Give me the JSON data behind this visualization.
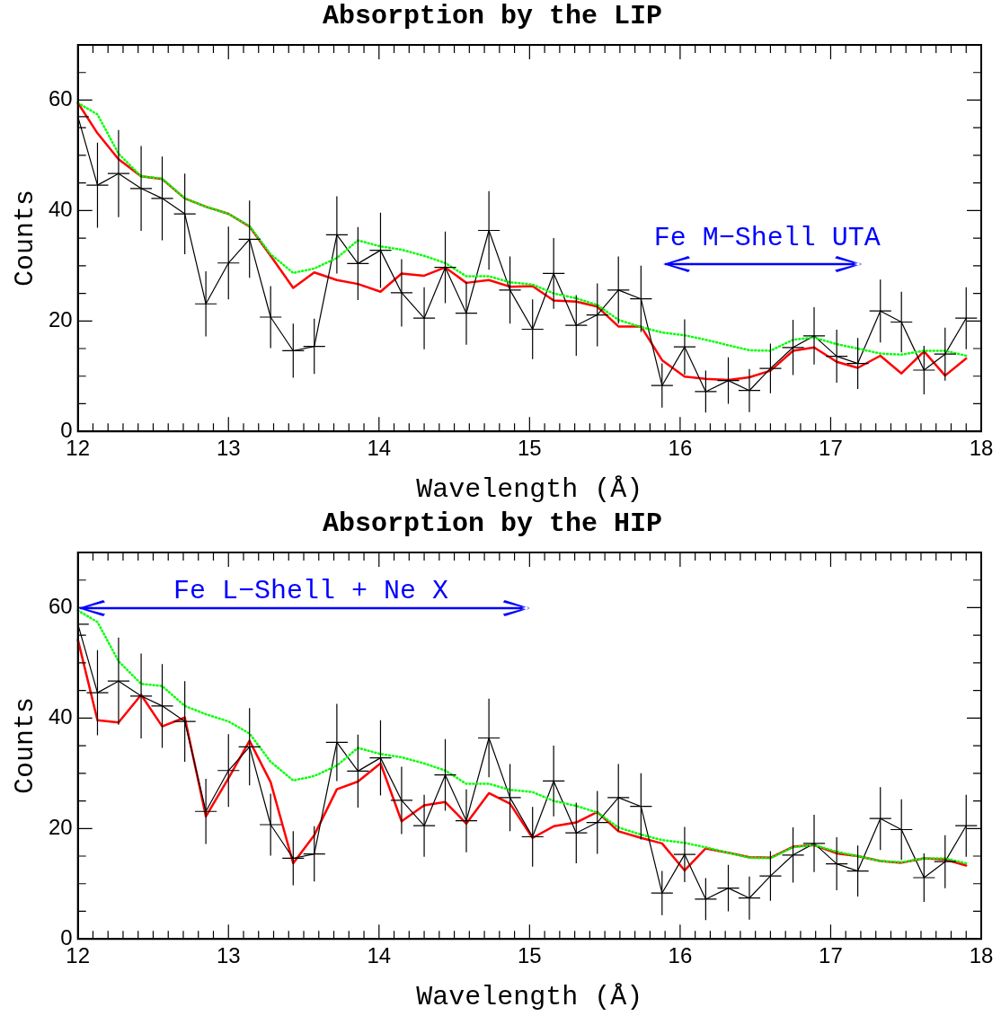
{
  "chart_data": [
    {
      "type": "line",
      "title": "Absorption by the LIP",
      "xlabel": "Wavelength (Å)",
      "ylabel": "Counts",
      "x": [
        12.0,
        12.13,
        12.27,
        12.42,
        12.56,
        12.71,
        12.85,
        13.0,
        13.14,
        13.28,
        13.43,
        13.57,
        13.72,
        13.86,
        14.01,
        14.15,
        14.3,
        14.44,
        14.58,
        14.73,
        14.87,
        15.02,
        15.16,
        15.31,
        15.45,
        15.59,
        15.74,
        15.88,
        16.03,
        16.17,
        16.32,
        16.46,
        16.6,
        16.75,
        16.89,
        17.04,
        17.18,
        17.33,
        17.47,
        17.62,
        17.76,
        17.9
      ],
      "series": [
        {
          "color": "#00ff00",
          "line_style": "dotted",
          "values": [
            59.5,
            57.4,
            50.3,
            46.2,
            45.8,
            42.2,
            40.7,
            39.4,
            37.2,
            32.1,
            28.7,
            29.5,
            31.4,
            34.6,
            33.5,
            32.9,
            31.8,
            30.5,
            28.1,
            28.1,
            27.0,
            26.6,
            25.0,
            24.1,
            22.9,
            20.2,
            18.9,
            17.9,
            17.4,
            16.6,
            15.6,
            14.7,
            14.6,
            16.6,
            17.0,
            15.8,
            15.0,
            14.1,
            13.9,
            14.6,
            14.6,
            13.7
          ]
        },
        {
          "color": "#000000",
          "line_style": "solid",
          "values": [
            57.0,
            44.6,
            46.7,
            44.0,
            42.2,
            39.4,
            23.1,
            30.5,
            34.8,
            20.7,
            14.6,
            15.4,
            35.6,
            30.4,
            32.8,
            25.1,
            20.5,
            29.7,
            21.4,
            36.4,
            25.6,
            18.5,
            28.6,
            19.2,
            21.1,
            25.6,
            24.0,
            8.3,
            15.3,
            7.2,
            9.2,
            7.4,
            11.4,
            15.2,
            17.3,
            13.6,
            12.3,
            21.8,
            19.8,
            11.1,
            14.0,
            20.5
          ],
          "errors": [
            8.6,
            7.7,
            7.9,
            7.7,
            7.6,
            7.3,
            5.9,
            6.6,
            7.0,
            5.6,
            4.9,
            5.0,
            7.0,
            6.6,
            6.8,
            6.1,
            5.6,
            6.5,
            5.7,
            7.1,
            6.1,
            5.4,
            6.4,
            5.5,
            5.7,
            6.1,
            6.0,
            4.0,
            5.0,
            3.8,
            4.2,
            3.9,
            4.5,
            5.0,
            5.2,
            4.8,
            4.6,
            5.7,
            5.5,
            4.4,
            4.8,
            5.6
          ],
          "xerrors": [
            0.072,
            0.072,
            0.072,
            0.072,
            0.072,
            0.072,
            0.072,
            0.072,
            0.072,
            0.072,
            0.072,
            0.072,
            0.072,
            0.072,
            0.072,
            0.072,
            0.072,
            0.072,
            0.072,
            0.072,
            0.072,
            0.072,
            0.072,
            0.072,
            0.072,
            0.072,
            0.072,
            0.072,
            0.072,
            0.072,
            0.072,
            0.072,
            0.072,
            0.072,
            0.072,
            0.072,
            0.072,
            0.072,
            0.072,
            0.072,
            0.072,
            0.072
          ]
        },
        {
          "color": "#ff0000",
          "line_style": "solid",
          "values": [
            59.5,
            54.0,
            49.3,
            46.2,
            45.7,
            42.2,
            40.7,
            39.4,
            37.1,
            31.8,
            26.0,
            28.8,
            27.4,
            26.7,
            25.3,
            28.6,
            28.2,
            29.7,
            26.9,
            27.4,
            26.2,
            26.3,
            23.7,
            23.5,
            22.6,
            19.0,
            19.0,
            12.9,
            9.9,
            9.5,
            9.3,
            9.8,
            11.0,
            14.6,
            15.2,
            12.6,
            11.5,
            13.7,
            10.5,
            14.5,
            10.1,
            13.2
          ]
        }
      ],
      "annotations": [
        "Fe M−Shell UTA"
      ],
      "xlim": [
        12,
        18
      ],
      "ylim": [
        0,
        70
      ],
      "xticks": [
        12,
        {
          "value": 12.1,
          "label": null
        },
        {
          "value": 12.2,
          "label": null
        },
        {
          "value": 12.3,
          "label": null
        },
        {
          "value": 12.4,
          "label": null
        },
        {
          "value": 12.5,
          "label": null
        },
        {
          "value": 12.6,
          "label": null
        },
        {
          "value": 12.7,
          "label": null
        },
        {
          "value": 12.8,
          "label": null
        },
        {
          "value": 12.9,
          "label": null
        },
        13,
        {
          "value": 13.1,
          "label": null
        },
        {
          "value": 13.2,
          "label": null
        },
        {
          "value": 13.3,
          "label": null
        },
        {
          "value": 13.4,
          "label": null
        },
        {
          "value": 13.5,
          "label": null
        },
        {
          "value": 13.6,
          "label": null
        },
        {
          "value": 13.7,
          "label": null
        },
        {
          "value": 13.8,
          "label": null
        },
        {
          "value": 13.9,
          "label": null
        },
        14,
        {
          "value": 14.1,
          "label": null
        },
        {
          "value": 14.2,
          "label": null
        },
        {
          "value": 14.3,
          "label": null
        },
        {
          "value": 14.4,
          "label": null
        },
        {
          "value": 14.5,
          "label": null
        },
        {
          "value": 14.6,
          "label": null
        },
        {
          "value": 14.7,
          "label": null
        },
        {
          "value": 14.8,
          "label": null
        },
        {
          "value": 14.9,
          "label": null
        },
        15,
        {
          "value": 15.1,
          "label": null
        },
        {
          "value": 15.2,
          "label": null
        },
        {
          "value": 15.3,
          "label": null
        },
        {
          "value": 15.4,
          "label": null
        },
        {
          "value": 15.5,
          "label": null
        },
        {
          "value": 15.6,
          "label": null
        },
        {
          "value": 15.7,
          "label": null
        },
        {
          "value": 15.8,
          "label": null
        },
        {
          "value": 15.9,
          "label": null
        },
        16,
        {
          "value": 16.1,
          "label": null
        },
        {
          "value": 16.2,
          "label": null
        },
        {
          "value": 16.3,
          "label": null
        },
        {
          "value": 16.4,
          "label": null
        },
        {
          "value": 16.5,
          "label": null
        },
        {
          "value": 16.6,
          "label": null
        },
        {
          "value": 16.7,
          "label": null
        },
        {
          "value": 16.8,
          "label": null
        },
        {
          "value": 16.9,
          "label": null
        },
        17,
        {
          "value": 17.1,
          "label": null
        },
        {
          "value": 17.2,
          "label": null
        },
        {
          "value": 17.3,
          "label": null
        },
        {
          "value": 17.4,
          "label": null
        },
        {
          "value": 17.5,
          "label": null
        },
        {
          "value": 17.6,
          "label": null
        },
        {
          "value": 17.7,
          "label": null
        },
        {
          "value": 17.8,
          "label": null
        },
        {
          "value": 17.9,
          "label": null
        },
        18
      ],
      "yticks": [
        0,
        {
          "value": 5,
          "label": null
        },
        {
          "value": 10,
          "label": null
        },
        {
          "value": 15,
          "label": null
        },
        20,
        {
          "value": 25,
          "label": null
        },
        {
          "value": 30,
          "label": null
        },
        {
          "value": 35,
          "label": null
        },
        40,
        {
          "value": 45,
          "label": null
        },
        {
          "value": 50,
          "label": null
        },
        {
          "value": 55,
          "label": null
        },
        60,
        {
          "value": 65,
          "label": null
        }
      ],
      "marker": "none",
      "grid": false,
      "legend": false
    },
    {
      "type": "line",
      "title": "Absorption by the HIP",
      "xlabel": "Wavelength (Å)",
      "ylabel": "Counts",
      "x": [
        12.0,
        12.13,
        12.27,
        12.42,
        12.56,
        12.71,
        12.85,
        13.0,
        13.14,
        13.28,
        13.43,
        13.57,
        13.72,
        13.86,
        14.01,
        14.15,
        14.3,
        14.44,
        14.58,
        14.73,
        14.87,
        15.02,
        15.16,
        15.31,
        15.45,
        15.59,
        15.74,
        15.88,
        16.03,
        16.17,
        16.32,
        16.46,
        16.6,
        16.75,
        16.89,
        17.04,
        17.18,
        17.33,
        17.47,
        17.62,
        17.76,
        17.9
      ],
      "series": [
        {
          "color": "#00ff00",
          "line_style": "dotted",
          "values": [
            59.5,
            57.4,
            50.3,
            46.2,
            45.8,
            42.2,
            40.7,
            39.4,
            37.2,
            32.1,
            28.7,
            29.5,
            31.4,
            34.6,
            33.5,
            32.9,
            31.8,
            30.5,
            28.1,
            28.1,
            27.0,
            26.6,
            25.0,
            24.1,
            22.9,
            20.2,
            18.9,
            17.9,
            17.4,
            16.6,
            15.6,
            14.7,
            14.6,
            16.6,
            17.0,
            15.8,
            15.0,
            14.1,
            13.9,
            14.6,
            14.6,
            13.7
          ]
        },
        {
          "color": "#000000",
          "line_style": "solid",
          "values": [
            57.0,
            44.6,
            46.7,
            44.0,
            42.2,
            39.4,
            23.1,
            30.5,
            34.8,
            20.7,
            14.6,
            15.4,
            35.6,
            30.4,
            32.8,
            25.1,
            20.5,
            29.7,
            21.4,
            36.4,
            25.6,
            18.5,
            28.6,
            19.2,
            21.1,
            25.6,
            24.0,
            8.3,
            15.3,
            7.2,
            9.2,
            7.4,
            11.4,
            15.2,
            17.3,
            13.6,
            12.3,
            21.8,
            19.8,
            11.1,
            14.0,
            20.5
          ],
          "errors": [
            8.6,
            7.7,
            7.9,
            7.7,
            7.6,
            7.3,
            5.9,
            6.6,
            7.0,
            5.6,
            4.9,
            5.0,
            7.0,
            6.6,
            6.8,
            6.1,
            5.6,
            6.5,
            5.7,
            7.1,
            6.1,
            5.4,
            6.4,
            5.5,
            5.7,
            6.1,
            6.0,
            4.0,
            5.0,
            3.8,
            4.2,
            3.9,
            4.5,
            5.0,
            5.2,
            4.8,
            4.6,
            5.7,
            5.5,
            4.4,
            4.8,
            5.6
          ],
          "xerrors": [
            0.072,
            0.072,
            0.072,
            0.072,
            0.072,
            0.072,
            0.072,
            0.072,
            0.072,
            0.072,
            0.072,
            0.072,
            0.072,
            0.072,
            0.072,
            0.072,
            0.072,
            0.072,
            0.072,
            0.072,
            0.072,
            0.072,
            0.072,
            0.072,
            0.072,
            0.072,
            0.072,
            0.072,
            0.072,
            0.072,
            0.072,
            0.072,
            0.072,
            0.072,
            0.072,
            0.072,
            0.072,
            0.072,
            0.072,
            0.072,
            0.072,
            0.072
          ]
        },
        {
          "color": "#ff0000",
          "line_style": "solid",
          "values": [
            54.2,
            39.6,
            39.2,
            44.2,
            38.5,
            40.1,
            22.2,
            29.1,
            35.9,
            28.4,
            13.7,
            18.8,
            27.1,
            28.5,
            31.8,
            21.3,
            24.2,
            24.8,
            20.9,
            26.4,
            24.5,
            18.3,
            20.4,
            21.1,
            23.0,
            19.5,
            18.3,
            17.3,
            12.4,
            16.4,
            15.6,
            14.8,
            14.7,
            16.7,
            17.0,
            15.5,
            15.0,
            14.1,
            13.8,
            14.6,
            14.4,
            13.3
          ]
        }
      ],
      "annotations": [
        "Fe L−Shell + Ne X"
      ],
      "xlim": [
        12,
        18
      ],
      "ylim": [
        0,
        70
      ],
      "xticks": [
        12,
        {
          "value": 12.1,
          "label": null
        },
        {
          "value": 12.2,
          "label": null
        },
        {
          "value": 12.3,
          "label": null
        },
        {
          "value": 12.4,
          "label": null
        },
        {
          "value": 12.5,
          "label": null
        },
        {
          "value": 12.6,
          "label": null
        },
        {
          "value": 12.7,
          "label": null
        },
        {
          "value": 12.8,
          "label": null
        },
        {
          "value": 12.9,
          "label": null
        },
        13,
        {
          "value": 13.1,
          "label": null
        },
        {
          "value": 13.2,
          "label": null
        },
        {
          "value": 13.3,
          "label": null
        },
        {
          "value": 13.4,
          "label": null
        },
        {
          "value": 13.5,
          "label": null
        },
        {
          "value": 13.6,
          "label": null
        },
        {
          "value": 13.7,
          "label": null
        },
        {
          "value": 13.8,
          "label": null
        },
        {
          "value": 13.9,
          "label": null
        },
        14,
        {
          "value": 14.1,
          "label": null
        },
        {
          "value": 14.2,
          "label": null
        },
        {
          "value": 14.3,
          "label": null
        },
        {
          "value": 14.4,
          "label": null
        },
        {
          "value": 14.5,
          "label": null
        },
        {
          "value": 14.6,
          "label": null
        },
        {
          "value": 14.7,
          "label": null
        },
        {
          "value": 14.8,
          "label": null
        },
        {
          "value": 14.9,
          "label": null
        },
        15,
        {
          "value": 15.1,
          "label": null
        },
        {
          "value": 15.2,
          "label": null
        },
        {
          "value": 15.3,
          "label": null
        },
        {
          "value": 15.4,
          "label": null
        },
        {
          "value": 15.5,
          "label": null
        },
        {
          "value": 15.6,
          "label": null
        },
        {
          "value": 15.7,
          "label": null
        },
        {
          "value": 15.8,
          "label": null
        },
        {
          "value": 15.9,
          "label": null
        },
        16,
        {
          "value": 16.1,
          "label": null
        },
        {
          "value": 16.2,
          "label": null
        },
        {
          "value": 16.3,
          "label": null
        },
        {
          "value": 16.4,
          "label": null
        },
        {
          "value": 16.5,
          "label": null
        },
        {
          "value": 16.6,
          "label": null
        },
        {
          "value": 16.7,
          "label": null
        },
        {
          "value": 16.8,
          "label": null
        },
        {
          "value": 16.9,
          "label": null
        },
        17,
        {
          "value": 17.1,
          "label": null
        },
        {
          "value": 17.2,
          "label": null
        },
        {
          "value": 17.3,
          "label": null
        },
        {
          "value": 17.4,
          "label": null
        },
        {
          "value": 17.5,
          "label": null
        },
        {
          "value": 17.6,
          "label": null
        },
        {
          "value": 17.7,
          "label": null
        },
        {
          "value": 17.8,
          "label": null
        },
        {
          "value": 17.9,
          "label": null
        },
        18
      ],
      "yticks": [
        0,
        {
          "value": 5,
          "label": null
        },
        {
          "value": 10,
          "label": null
        },
        {
          "value": 15,
          "label": null
        },
        20,
        {
          "value": 25,
          "label": null
        },
        {
          "value": 30,
          "label": null
        },
        {
          "value": 35,
          "label": null
        },
        40,
        {
          "value": 45,
          "label": null
        },
        {
          "value": 50,
          "label": null
        },
        {
          "value": 55,
          "label": null
        },
        60,
        {
          "value": 65,
          "label": null
        }
      ],
      "marker": "none",
      "grid": false,
      "legend": false
    }
  ]
}
